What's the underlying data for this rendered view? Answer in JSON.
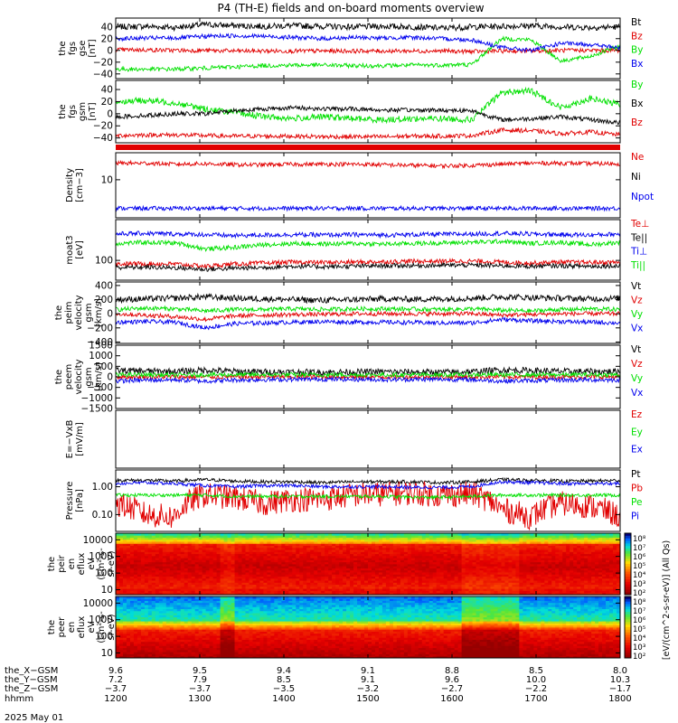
{
  "figure": {
    "title": "P4 (TH-E) fields and on-board moments overview",
    "date_label": "2025 May 01"
  },
  "colors": {
    "black": "#000000",
    "red": "#e10000",
    "green": "#00e000",
    "blue": "#0000ee",
    "colorbar": [
      "#000080",
      "#0000ff",
      "#0080ff",
      "#00e0e0",
      "#40ff40",
      "#ffff00",
      "#ff8000",
      "#ff0000",
      "#b00000"
    ]
  },
  "chart_data": [
    {
      "id": "fgs-gse",
      "type": "line",
      "ylabel": [
        "the",
        "fgs",
        "gse",
        "[nT]"
      ],
      "yticks": [
        "40",
        "20",
        "0",
        "−20",
        "−40"
      ],
      "ylim": [
        -48,
        55
      ],
      "scale": "linear",
      "series": [
        {
          "name": "Bt",
          "color": "black",
          "values": [
            40,
            41,
            39,
            44,
            42,
            41,
            42,
            41,
            40,
            41,
            40,
            38,
            40,
            41,
            42,
            40,
            39,
            40
          ]
        },
        {
          "name": "Bz",
          "color": "red",
          "values": [
            1,
            1,
            0,
            0,
            -1,
            -1,
            -1,
            -1,
            -1,
            -1,
            -1,
            -1,
            -2,
            -1,
            -1,
            0,
            0,
            0
          ]
        },
        {
          "name": "By",
          "color": "green",
          "values": [
            -32,
            -32,
            -32,
            -30,
            -28,
            -26,
            -25,
            -25,
            -26,
            -26,
            -25,
            -25,
            -24,
            20,
            18,
            -18,
            -10,
            8
          ]
        },
        {
          "name": "Bx",
          "color": "blue",
          "values": [
            20,
            21,
            21,
            24,
            25,
            24,
            22,
            20,
            22,
            21,
            22,
            20,
            18,
            5,
            0,
            12,
            10,
            4
          ]
        }
      ]
    },
    {
      "id": "fgs-gsm",
      "type": "line",
      "ylabel": [
        "the",
        "fgs",
        "gsm",
        "[nT]"
      ],
      "yticks": [
        "40",
        "20",
        "0",
        "−20",
        "−40"
      ],
      "ylim": [
        -48,
        55
      ],
      "scale": "linear",
      "series": [
        {
          "name": "By",
          "color": "green",
          "values": [
            20,
            22,
            18,
            8,
            2,
            -5,
            -8,
            -5,
            -8,
            -10,
            -8,
            -8,
            -10,
            35,
            38,
            10,
            25,
            15
          ]
        },
        {
          "name": "Bx",
          "color": "black",
          "values": [
            -5,
            -3,
            0,
            0,
            5,
            8,
            10,
            8,
            8,
            6,
            6,
            6,
            5,
            -10,
            -8,
            -5,
            -10,
            -15
          ]
        },
        {
          "name": "Bz",
          "color": "red",
          "values": [
            -36,
            -35,
            -35,
            -36,
            -37,
            -37,
            -37,
            -38,
            -38,
            -38,
            -37,
            -37,
            -36,
            -27,
            -28,
            -33,
            -30,
            -35
          ]
        }
      ]
    },
    {
      "id": "density",
      "type": "line",
      "ylabel": [
        "Density",
        "[cm−3]"
      ],
      "yticks": [
        "10"
      ],
      "ylim": [
        0.8,
        60
      ],
      "scale": "log",
      "series": [
        {
          "name": "Ne",
          "color": "red",
          "values": [
            30,
            30,
            28,
            29,
            27,
            27,
            28,
            28,
            28,
            27,
            26,
            25,
            26,
            28,
            30,
            30,
            29,
            29
          ]
        },
        {
          "name": "Ni",
          "color": "black",
          "values": []
        },
        {
          "name": "Npot",
          "color": "blue",
          "values": [
            1.5,
            1.5,
            1.5,
            1.5,
            1.5,
            1.5,
            1.5,
            1.5,
            1.5,
            1.5,
            1.5,
            1.5,
            1.5,
            1.5,
            1.5,
            1.5,
            1.5,
            1.5
          ]
        }
      ]
    },
    {
      "id": "temperature",
      "type": "line",
      "ylabel": [
        "moat3",
        "[eV]"
      ],
      "yticks": [
        "100"
      ],
      "ylim": [
        30,
        1200
      ],
      "scale": "log",
      "series": [
        {
          "name": "Te⊥",
          "color": "red",
          "values": [
            80,
            82,
            80,
            70,
            80,
            85,
            90,
            88,
            90,
            92,
            95,
            95,
            96,
            90,
            85,
            90,
            88,
            90
          ]
        },
        {
          "name": "Te||",
          "color": "black",
          "values": [
            65,
            66,
            64,
            58,
            62,
            65,
            70,
            68,
            70,
            72,
            73,
            74,
            75,
            72,
            70,
            72,
            70,
            72
          ]
        },
        {
          "name": "Ti⊥",
          "color": "blue",
          "values": [
            500,
            520,
            500,
            480,
            450,
            470,
            480,
            470,
            480,
            470,
            480,
            490,
            500,
            520,
            500,
            480,
            470,
            500
          ]
        },
        {
          "name": "Ti||",
          "color": "green",
          "values": [
            280,
            300,
            290,
            200,
            220,
            260,
            280,
            270,
            280,
            270,
            280,
            290,
            300,
            320,
            280,
            300,
            260,
            300
          ]
        }
      ]
    },
    {
      "id": "peim-velocity",
      "type": "line",
      "ylabel": [
        "the",
        "peim",
        "velocity",
        "gsm",
        "[km/s]"
      ],
      "yticks": [
        "400",
        "200",
        "0",
        "−200",
        "−400"
      ],
      "ylim": [
        -420,
        450
      ],
      "scale": "linear",
      "series": [
        {
          "name": "Vt",
          "color": "black",
          "values": [
            200,
            210,
            220,
            240,
            220,
            210,
            200,
            190,
            200,
            210,
            205,
            210,
            220,
            240,
            230,
            220,
            210,
            220
          ]
        },
        {
          "name": "Vz",
          "color": "red",
          "values": [
            0,
            -20,
            -40,
            -80,
            -30,
            -20,
            -10,
            -10,
            0,
            0,
            0,
            0,
            0,
            -20,
            -10,
            0,
            0,
            0
          ]
        },
        {
          "name": "Vy",
          "color": "green",
          "values": [
            60,
            80,
            70,
            40,
            60,
            60,
            70,
            60,
            70,
            70,
            65,
            60,
            70,
            50,
            40,
            60,
            70,
            60
          ]
        },
        {
          "name": "Vx",
          "color": "blue",
          "values": [
            -120,
            -110,
            -120,
            -200,
            -140,
            -130,
            -120,
            -110,
            -120,
            -120,
            -125,
            -130,
            -130,
            -80,
            -100,
            -110,
            -120,
            -130
          ]
        }
      ]
    },
    {
      "id": "peem-velocity",
      "type": "line",
      "ylabel": [
        "the",
        "peem",
        "velocity",
        "gsm",
        "[km/s]"
      ],
      "yticks": [
        "1500",
        "1000",
        "500",
        "0",
        "−500",
        "−1000",
        "−1500"
      ],
      "ylim": [
        -1500,
        1500
      ],
      "scale": "linear",
      "series": [
        {
          "name": "Vt",
          "color": "black",
          "values": [
            300,
            280,
            250,
            320,
            260,
            240,
            230,
            220,
            230,
            240,
            230,
            220,
            240,
            330,
            300,
            260,
            250,
            260
          ]
        },
        {
          "name": "Vz",
          "color": "red",
          "values": [
            0,
            0,
            0,
            0,
            0,
            0,
            0,
            0,
            0,
            0,
            0,
            0,
            0,
            0,
            0,
            0,
            0,
            0
          ]
        },
        {
          "name": "Vy",
          "color": "green",
          "values": [
            100,
            100,
            90,
            100,
            100,
            100,
            100,
            100,
            100,
            100,
            100,
            100,
            100,
            100,
            100,
            100,
            100,
            100
          ]
        },
        {
          "name": "Vx",
          "color": "blue",
          "values": [
            -200,
            -150,
            -140,
            -200,
            -150,
            -130,
            -120,
            -110,
            -120,
            -130,
            -120,
            -120,
            -130,
            -200,
            -180,
            -150,
            -140,
            -150
          ]
        }
      ]
    },
    {
      "id": "efield",
      "type": "line",
      "ylabel": [
        "E=−VxB",
        "[mV/m]"
      ],
      "yticks": [],
      "ylim": [
        -1,
        1
      ],
      "scale": "linear",
      "series": [
        {
          "name": "Ez",
          "color": "red",
          "values": []
        },
        {
          "name": "Ey",
          "color": "green",
          "values": []
        },
        {
          "name": "Ex",
          "color": "blue",
          "values": []
        }
      ]
    },
    {
      "id": "pressure",
      "type": "line",
      "ylabel": [
        "Pressure",
        "[nPa]"
      ],
      "yticks": [
        "1.00",
        "0.10"
      ],
      "ylim": [
        0.025,
        4
      ],
      "scale": "log",
      "series": [
        {
          "name": "Pt",
          "color": "black",
          "values": [
            1.7,
            1.7,
            1.6,
            1.8,
            1.6,
            1.5,
            1.5,
            1.4,
            1.5,
            1.5,
            1.5,
            1.4,
            1.5,
            1.8,
            1.7,
            1.6,
            1.6,
            1.7
          ]
        },
        {
          "name": "Pb",
          "color": "red",
          "values": [
            0.25,
            0.1,
            0.08,
            0.5,
            0.4,
            0.25,
            0.35,
            0.35,
            0.5,
            0.55,
            0.6,
            0.5,
            0.55,
            0.15,
            0.08,
            0.25,
            0.2,
            0.08
          ]
        },
        {
          "name": "Pe",
          "color": "green",
          "values": [
            0.5,
            0.5,
            0.5,
            0.5,
            0.45,
            0.45,
            0.45,
            0.45,
            0.45,
            0.45,
            0.42,
            0.42,
            0.45,
            0.5,
            0.5,
            0.5,
            0.5,
            0.5
          ]
        },
        {
          "name": "Pi",
          "color": "blue",
          "values": [
            1.3,
            1.4,
            1.3,
            1.1,
            1.0,
            1.1,
            1.1,
            1.0,
            1.0,
            1.0,
            0.95,
            0.95,
            1.0,
            1.5,
            1.4,
            1.3,
            1.3,
            1.3
          ]
        }
      ]
    },
    {
      "id": "peir-spectrogram",
      "type": "heatmap",
      "ylabel": [
        "the",
        "peir",
        "en",
        "eflux",
        "eV",
        "(cm²-s-",
        "sr-eV)"
      ],
      "yticks": [
        "10000",
        "1000",
        "100",
        "10"
      ],
      "ylim": [
        5,
        25000
      ],
      "scale": "log",
      "colorbar_label": "[eV/(cm^2-s-sr-eV)] (All Qs)",
      "colorbar_ticks": [
        "10⁸",
        "10⁷",
        "10⁶",
        "10⁵",
        "10⁴",
        "10³",
        "10²"
      ]
    },
    {
      "id": "peer-spectrogram",
      "type": "heatmap",
      "ylabel": [
        "the",
        "peer",
        "en",
        "eflux",
        "eV",
        "(cm²-s-",
        "sr-eV)"
      ],
      "yticks": [
        "10000",
        "1000",
        "100",
        "10"
      ],
      "ylim": [
        5,
        25000
      ],
      "scale": "log",
      "colorbar_label": "[eV/(cm^2-s-sr-eV)] (All Qs)",
      "colorbar_ticks": [
        "10⁸",
        "10⁷",
        "10⁶",
        "10⁵",
        "10⁴",
        "10³",
        "10²"
      ]
    }
  ],
  "x_axis": {
    "row_labels": [
      "the_X−GSM",
      "the_Y−GSM",
      "the_Z−GSM",
      "hhmm"
    ],
    "ticks": [
      {
        "x": 0,
        "X": "9.6",
        "Y": "7.2",
        "Z": "−3.7",
        "hhmm": "1200"
      },
      {
        "x": 1,
        "X": "9.5",
        "Y": "7.9",
        "Z": "−3.7",
        "hhmm": "1300"
      },
      {
        "x": 2,
        "X": "9.4",
        "Y": "8.5",
        "Z": "−3.5",
        "hhmm": "1400"
      },
      {
        "x": 3,
        "X": "9.1",
        "Y": "9.1",
        "Z": "−3.2",
        "hhmm": "1500"
      },
      {
        "x": 4,
        "X": "8.8",
        "Y": "9.6",
        "Z": "−2.7",
        "hhmm": "1600"
      },
      {
        "x": 5,
        "X": "8.5",
        "Y": "10.0",
        "Z": "−2.2",
        "hhmm": "1700"
      },
      {
        "x": 6,
        "X": "8.0",
        "Y": "10.3",
        "Z": "−1.7",
        "hhmm": "1800"
      }
    ]
  }
}
